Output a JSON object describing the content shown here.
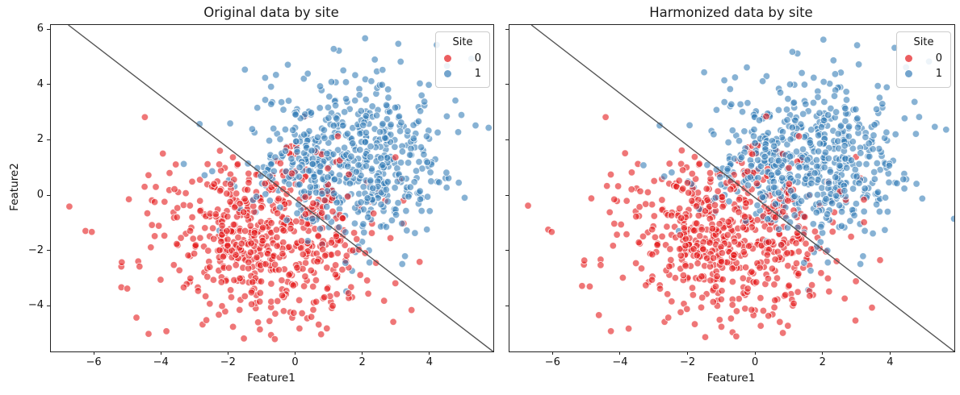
{
  "figure": {
    "background": "#ffffff",
    "spine_color": "#222222",
    "tick_color": "#222222"
  },
  "chart_data": [
    {
      "type": "scatter",
      "title": "Original data by site",
      "xlabel": "Feature1",
      "ylabel": "Feature2",
      "xlim": [
        -7.3,
        5.88
      ],
      "ylim": [
        -5.62,
        6.18
      ],
      "xticks": [
        -6,
        -4,
        -2,
        0,
        2,
        4
      ],
      "yticks": [
        -4,
        -2,
        0,
        2,
        4,
        6
      ],
      "show_y_tick_labels": true,
      "grid": false,
      "legend": {
        "title": "Site",
        "position": "upper right",
        "entries": [
          {
            "label": "0",
            "color": "#e41a1c"
          },
          {
            "label": "1",
            "color": "#377eb8"
          }
        ]
      },
      "marker": {
        "alpha": 0.6,
        "radius": 4.3,
        "edge_color": "#ffffff"
      },
      "boundary_line": {
        "color": "#555555",
        "points": [
          [
            -6.78,
            6.18
          ],
          [
            5.87,
            -5.62
          ]
        ]
      },
      "draw_seed": 7,
      "series": [
        {
          "name": "0",
          "color": "#e41a1c",
          "n": 600,
          "mean": [
            -0.85,
            -1.35
          ],
          "sd": [
            1.6,
            1.5
          ],
          "seed": 101,
          "extra_points": [
            [
              -6.75,
              -0.38
            ],
            [
              -6.08,
              -1.3
            ],
            [
              -4.5,
              2.85
            ],
            [
              -4.66,
              -2.55
            ],
            [
              -1.55,
              -5.15
            ],
            [
              0.75,
              -5.0
            ],
            [
              2.9,
              -4.55
            ],
            [
              -5.2,
              -3.3
            ]
          ]
        },
        {
          "name": "1",
          "color": "#377eb8",
          "n": 600,
          "mean": [
            1.5,
            1.3
          ],
          "sd": [
            1.55,
            1.45
          ],
          "seed": 202,
          "extra_points": [
            [
              -2.87,
              2.6
            ],
            [
              2.06,
              5.7
            ],
            [
              3.05,
              5.5
            ],
            [
              2.35,
              4.93
            ],
            [
              4.75,
              3.45
            ],
            [
              5.35,
              2.55
            ],
            [
              1.5,
              -3.45
            ],
            [
              4.5,
              4.7
            ]
          ]
        }
      ]
    },
    {
      "type": "scatter",
      "title": "Harmonized data by site",
      "xlabel": "Feature1",
      "xlim": [
        -7.3,
        5.88
      ],
      "ylim": [
        -5.62,
        6.18
      ],
      "xticks": [
        -6,
        -4,
        -2,
        0,
        2,
        4
      ],
      "yticks": [
        -4,
        -2,
        0,
        2,
        4,
        6
      ],
      "show_y_tick_labels": false,
      "grid": false,
      "legend": {
        "title": "Site",
        "position": "upper right",
        "entries": [
          {
            "label": "0",
            "color": "#e41a1c"
          },
          {
            "label": "1",
            "color": "#377eb8"
          }
        ]
      },
      "marker": {
        "alpha": 0.6,
        "radius": 4.3,
        "edge_color": "#ffffff"
      },
      "boundary_line": {
        "color": "#555555",
        "points": [
          [
            -6.65,
            6.18
          ],
          [
            5.88,
            -5.62
          ]
        ]
      },
      "draw_seed": 8,
      "series": [
        {
          "name": "0",
          "color": "#e41a1c",
          "n": 600,
          "mean": [
            -0.8,
            -1.3
          ],
          "sd": [
            1.58,
            1.48
          ],
          "seed": 101,
          "extra_points": [
            [
              -6.75,
              -0.35
            ],
            [
              -6.05,
              -1.3
            ],
            [
              -4.45,
              2.85
            ],
            [
              -4.6,
              -2.5
            ],
            [
              -1.5,
              -5.1
            ],
            [
              0.8,
              -4.95
            ],
            [
              2.95,
              -4.5
            ],
            [
              -5.15,
              -3.25
            ]
          ]
        },
        {
          "name": "1",
          "color": "#377eb8",
          "n": 600,
          "mean": [
            1.45,
            1.25
          ],
          "sd": [
            1.53,
            1.43
          ],
          "seed": 202,
          "extra_points": [
            [
              -2.85,
              2.55
            ],
            [
              2.0,
              5.65
            ],
            [
              3.0,
              5.45
            ],
            [
              2.3,
              4.9
            ],
            [
              4.7,
              3.4
            ],
            [
              5.3,
              2.5
            ],
            [
              1.55,
              -3.4
            ],
            [
              4.45,
              4.65
            ]
          ]
        }
      ]
    }
  ]
}
